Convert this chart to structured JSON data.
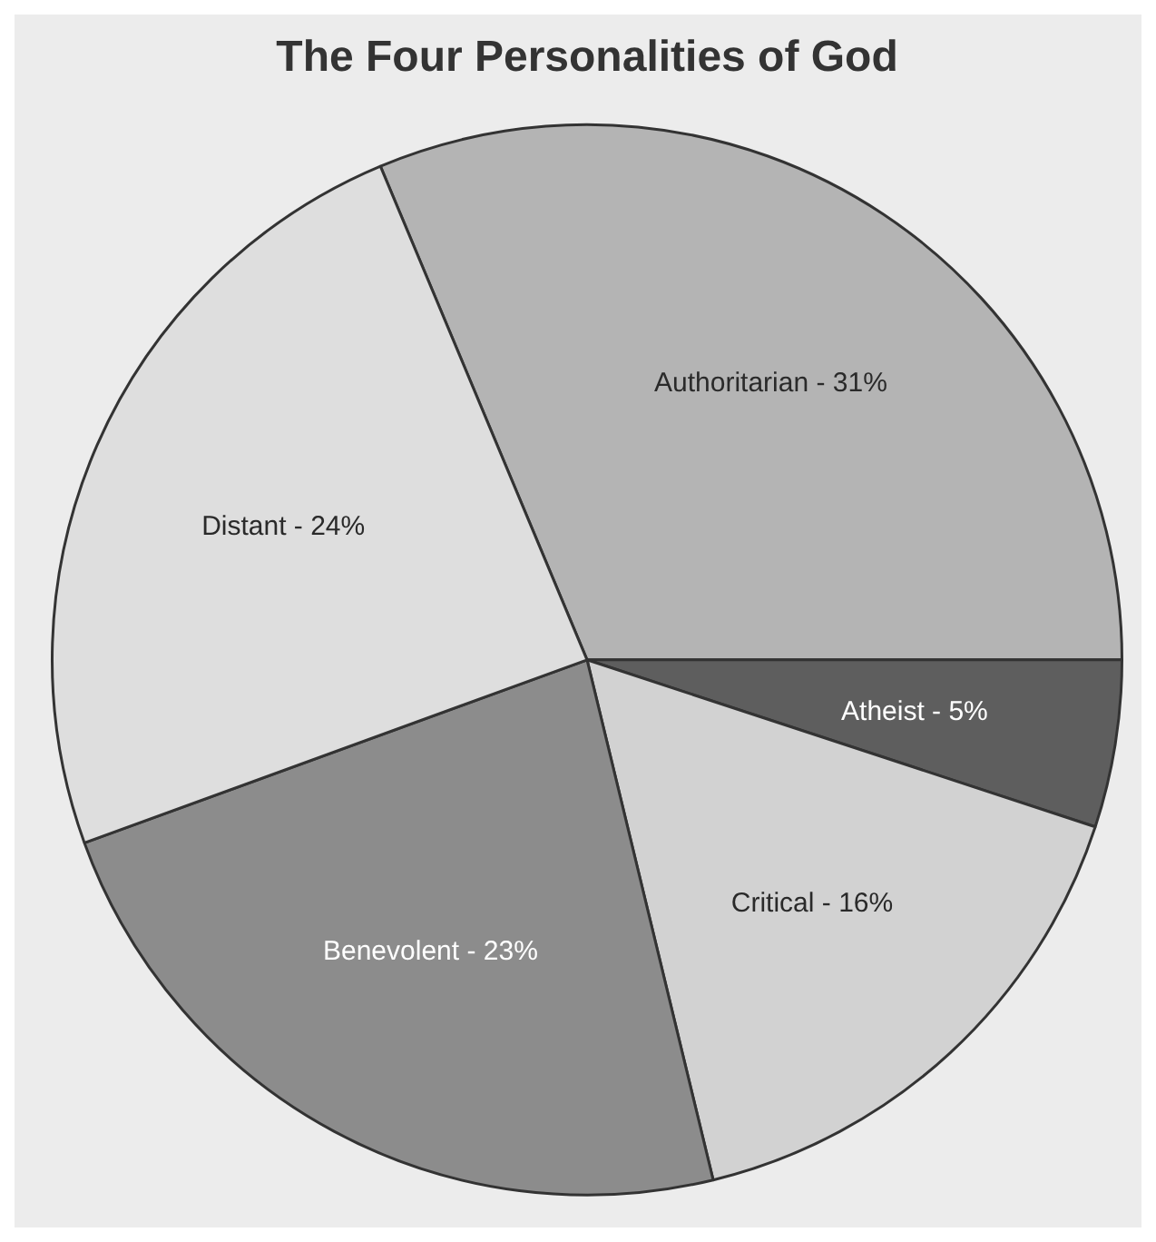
{
  "chart_data": {
    "type": "pie",
    "title": "The Four Personalities of God",
    "categories": [
      "Authoritarian -",
      "Atheist -",
      "Critical -",
      "Benevolent -",
      "Distant -"
    ],
    "values": [
      31,
      5,
      16,
      23,
      24
    ],
    "colors": [
      "#b4b4b4",
      "#5e5e5e",
      "#d2d2d2",
      "#8c8c8c",
      "#dedede"
    ],
    "value_labels": [
      "31%",
      "5%",
      "16%",
      "23%",
      "24%"
    ],
    "legend": false
  }
}
